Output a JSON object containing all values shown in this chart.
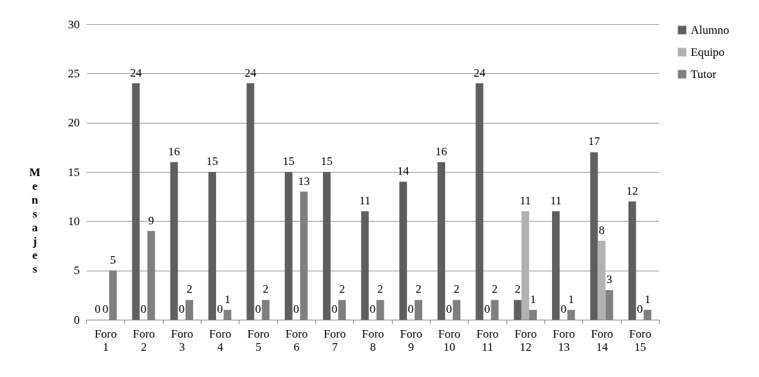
{
  "chart_data": {
    "type": "bar",
    "ylabel": "Mensajes",
    "categories": [
      "Foro 1",
      "Foro 2",
      "Foro 3",
      "Foro 4",
      "Foro 5",
      "Foro 6",
      "Foro 7",
      "Foro 8",
      "Foro 9",
      "Foro 10",
      "Foro 11",
      "Foro 12",
      "Foro 13",
      "Foro 14",
      "Foro 15"
    ],
    "series": [
      {
        "name": "Alumno",
        "color": "#5f5f5f",
        "values": [
          0,
          24,
          16,
          15,
          24,
          15,
          15,
          11,
          14,
          16,
          24,
          2,
          11,
          17,
          12
        ]
      },
      {
        "name": "Equipo",
        "color": "#b2b2b2",
        "values": [
          0,
          0,
          0,
          0,
          0,
          0,
          0,
          0,
          0,
          0,
          0,
          11,
          0,
          8,
          0
        ]
      },
      {
        "name": "Tutor",
        "color": "#808080",
        "values": [
          5,
          9,
          2,
          1,
          2,
          13,
          2,
          2,
          2,
          2,
          2,
          1,
          1,
          3,
          1
        ]
      }
    ],
    "ylim": [
      0,
      30
    ],
    "yticks": [
      0,
      5,
      10,
      15,
      20,
      25,
      30
    ],
    "grid": "y",
    "legend": "right",
    "data_labels": true
  }
}
